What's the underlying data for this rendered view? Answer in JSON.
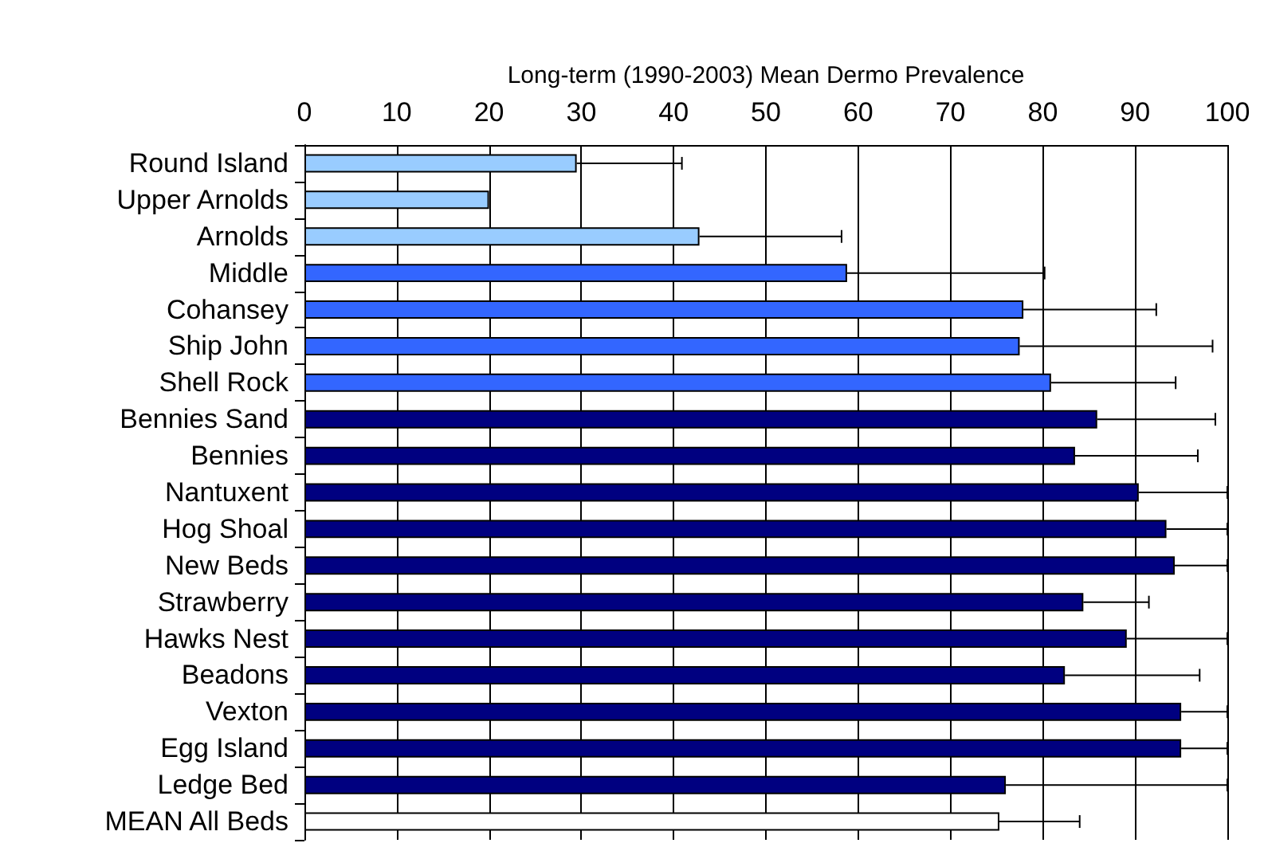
{
  "chart_data": {
    "type": "bar",
    "orientation": "horizontal",
    "xlabel": "Long-term (1990-2003) Mean Dermo Prevalence",
    "categories": [
      "Round Island",
      "Upper Arnolds",
      "Arnolds",
      "Middle",
      "Cohansey",
      "Ship John",
      "Shell Rock",
      "Bennies Sand",
      "Bennies",
      "Nantuxent",
      "Hog Shoal",
      "New Beds",
      "Strawberry",
      "Hawks Nest",
      "Beadons",
      "Vexton",
      "Egg Island",
      "Ledge Bed",
      "MEAN All Beds"
    ],
    "values": [
      29.5,
      20,
      42.8,
      58.8,
      77.9,
      77.5,
      80.9,
      85.9,
      83.5,
      90.4,
      93.4,
      94.3,
      84.4,
      89.1,
      82.4,
      95,
      95,
      76,
      75.3
    ],
    "errors": [
      [
        29.5,
        40.9
      ],
      null,
      [
        42.8,
        58.2
      ],
      [
        58.8,
        80.2
      ],
      [
        77.9,
        92.3
      ],
      [
        77.5,
        98.4
      ],
      [
        80.9,
        94.4
      ],
      [
        85.9,
        98.7
      ],
      [
        83.5,
        96.8
      ],
      [
        90.4,
        100
      ],
      [
        93.4,
        100
      ],
      [
        94.3,
        100
      ],
      [
        84.4,
        91.5
      ],
      [
        89.1,
        100
      ],
      [
        82.4,
        97
      ],
      [
        95,
        100
      ],
      [
        95,
        100
      ],
      [
        76,
        100
      ],
      [
        75.3,
        84
      ]
    ],
    "colors": [
      "#99ccff",
      "#99ccff",
      "#99ccff",
      "#3366ff",
      "#3366ff",
      "#3366ff",
      "#3366ff",
      "#000080",
      "#000080",
      "#000080",
      "#000080",
      "#000080",
      "#000080",
      "#000080",
      "#000080",
      "#000080",
      "#000080",
      "#000080",
      "#ffffff"
    ],
    "xlim": [
      0,
      100
    ],
    "xticks": [
      0,
      10,
      20,
      30,
      40,
      50,
      60,
      70,
      80,
      90,
      100
    ],
    "grid": "x"
  }
}
